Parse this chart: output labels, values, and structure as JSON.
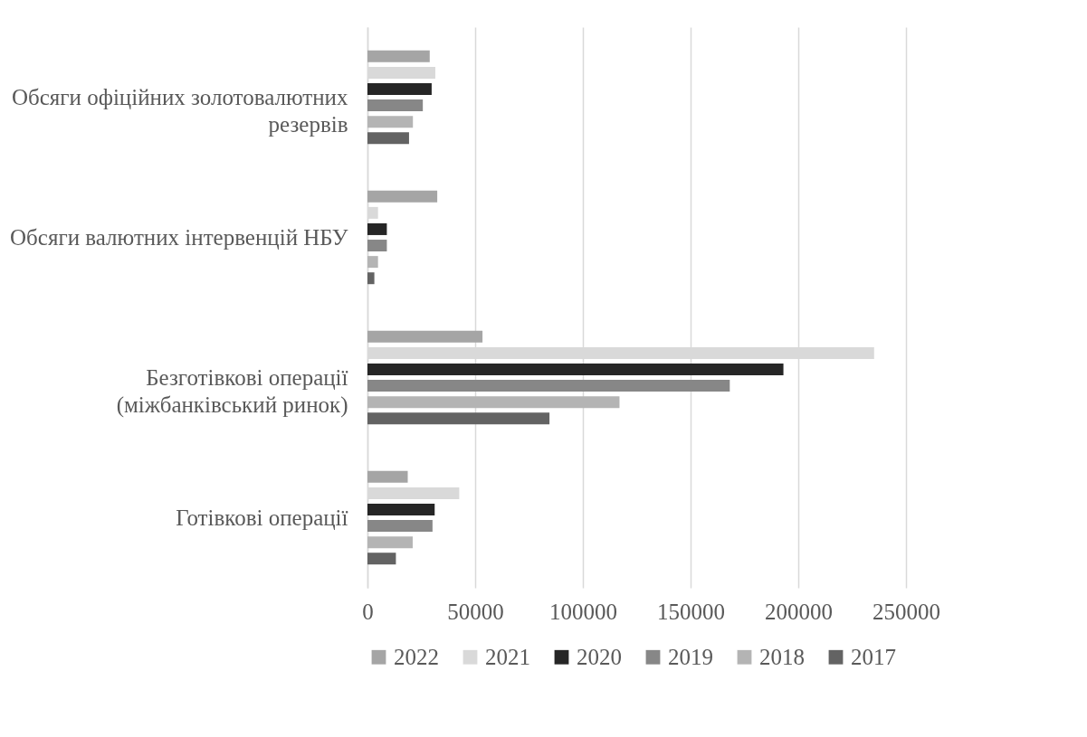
{
  "chart_data": {
    "type": "bar",
    "orientation": "horizontal",
    "categories": [
      "Обсяги офіційних золотовалютних резервів",
      "Обсяги валютних інтервенцій НБУ",
      "Безготівкові операції (міжбанківський ринок)",
      "Готівкові операції"
    ],
    "series": [
      {
        "name": "2022",
        "color": "#a5a5a5",
        "values": [
          28900,
          32400,
          53400,
          18700
        ]
      },
      {
        "name": "2021",
        "color": "#d9d9d9",
        "values": [
          31500,
          4900,
          235200,
          42600
        ]
      },
      {
        "name": "2020",
        "color": "#262626",
        "values": [
          29800,
          9000,
          193100,
          31200
        ]
      },
      {
        "name": "2019",
        "color": "#878787",
        "values": [
          25700,
          9000,
          168200,
          30200
        ]
      },
      {
        "name": "2018",
        "color": "#b4b4b4",
        "values": [
          21100,
          4900,
          117000,
          21000
        ]
      },
      {
        "name": "2017",
        "color": "#636363",
        "values": [
          19300,
          3200,
          84500,
          13200
        ]
      }
    ],
    "xlim": [
      0,
      250000
    ],
    "xticks": [
      0,
      50000,
      100000,
      150000,
      200000,
      250000
    ],
    "grid": "x",
    "legend": "bottom"
  }
}
